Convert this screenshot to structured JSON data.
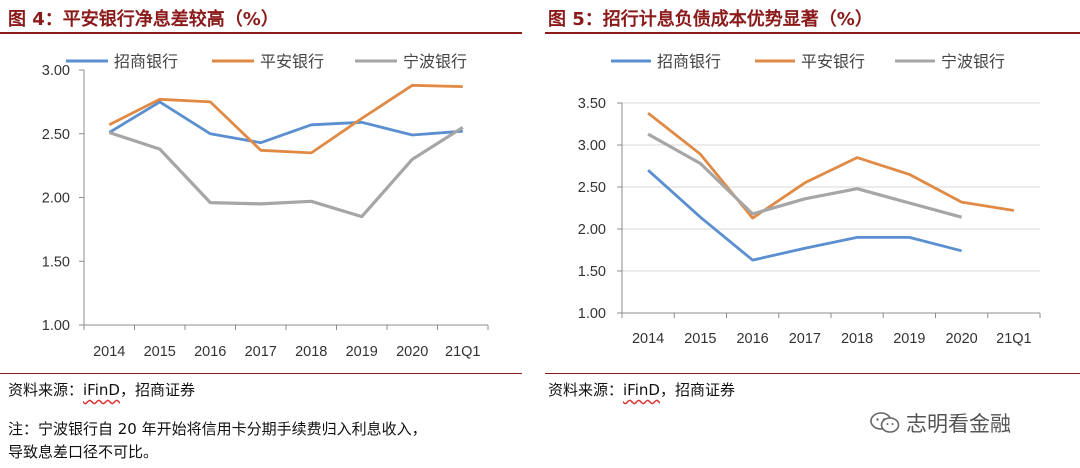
{
  "chart_data": [
    {
      "type": "line",
      "title": "图 4：平安银行净息差较高（%）",
      "categories": [
        "2014",
        "2015",
        "2016",
        "2017",
        "2018",
        "2019",
        "2020",
        "21Q1"
      ],
      "yticks": [
        "1.00",
        "1.50",
        "2.00",
        "2.50",
        "3.00"
      ],
      "ylim": [
        1.0,
        3.0
      ],
      "legend_position": "top",
      "grid": false,
      "series": [
        {
          "name": "招商银行",
          "color": "#5b8fd0",
          "values": [
            2.51,
            2.75,
            2.5,
            2.43,
            2.57,
            2.59,
            2.49,
            2.52
          ]
        },
        {
          "name": "平安银行",
          "color": "#e08a45",
          "values": [
            2.57,
            2.77,
            2.75,
            2.37,
            2.35,
            2.62,
            2.88,
            2.87
          ]
        },
        {
          "name": "宁波银行",
          "color": "#a6a6a6",
          "values": [
            2.51,
            2.38,
            1.96,
            1.95,
            1.97,
            1.85,
            2.3,
            2.55
          ]
        }
      ]
    },
    {
      "type": "line",
      "title": "图 5：招行计息负债成本优势显著（%）",
      "categories": [
        "2014",
        "2015",
        "2016",
        "2017",
        "2018",
        "2019",
        "2020",
        "21Q1"
      ],
      "yticks": [
        "1.00",
        "1.50",
        "2.00",
        "2.50",
        "3.00",
        "3.50"
      ],
      "ylim": [
        1.0,
        3.5
      ],
      "legend_position": "top",
      "grid": true,
      "series": [
        {
          "name": "招商银行",
          "color": "#5b8fd0",
          "values": [
            2.7,
            2.14,
            1.63,
            1.77,
            1.9,
            1.9,
            1.74,
            null
          ]
        },
        {
          "name": "平安银行",
          "color": "#e08a45",
          "values": [
            3.38,
            2.89,
            2.13,
            2.55,
            2.85,
            2.65,
            2.32,
            2.22
          ]
        },
        {
          "name": "宁波银行",
          "color": "#a6a6a6",
          "values": [
            3.13,
            2.78,
            2.18,
            2.36,
            2.48,
            2.31,
            2.14,
            null
          ]
        }
      ]
    }
  ],
  "source_left": {
    "label": "资料来源：",
    "ifind": "iFinD",
    "rest": "，招商证券"
  },
  "source_right": {
    "label": "资料来源：",
    "ifind": "iFinD",
    "rest": "，招商证券"
  },
  "note_line1": "注：宁波银行自 20 年开始将信用卡分期手续费归入利息收入，",
  "note_line2": "导致息差口径不可比。",
  "watermark": "志明看金融",
  "watermark_icon": "wechat-icon"
}
